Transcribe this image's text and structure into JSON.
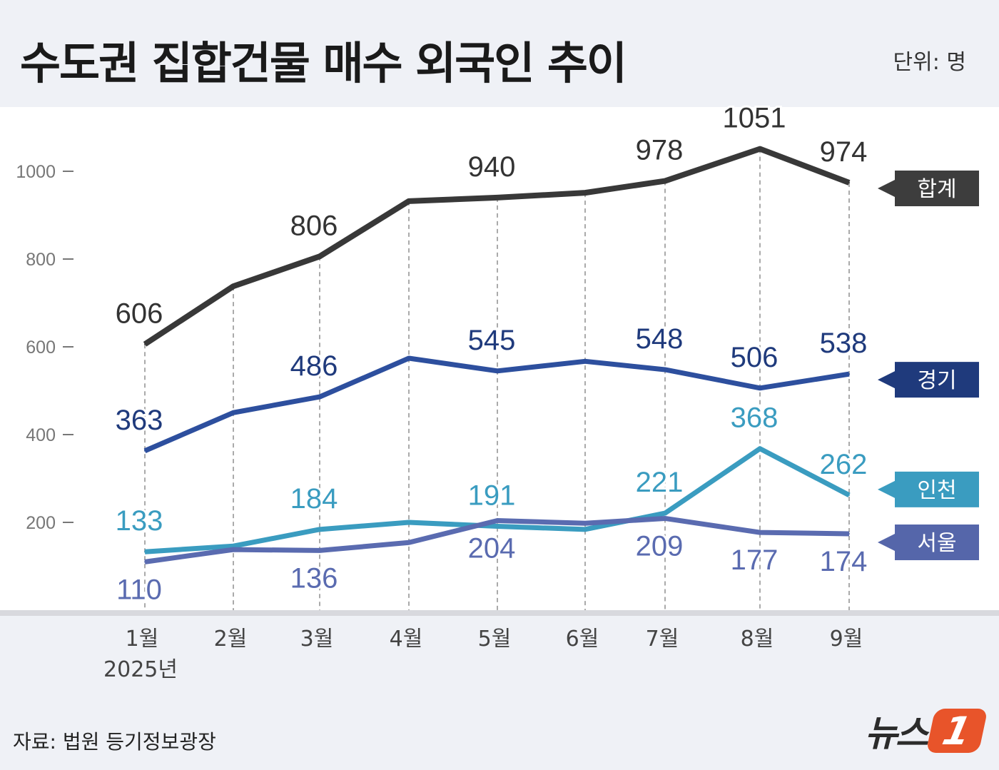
{
  "title": "수도권 집합건물 매수 외국인 추이",
  "unit": "단위: 명",
  "source": "자료: 법원 등기정보광장",
  "logo": {
    "text": "뉴스",
    "mark": "1"
  },
  "chart_data": {
    "type": "line",
    "title": "수도권 집합건물 매수 외국인 추이",
    "categories": [
      "1월",
      "2월",
      "3월",
      "4월",
      "5월",
      "6월",
      "7월",
      "8월",
      "9월"
    ],
    "year_label": "2025년",
    "ylim": [
      0,
      1100
    ],
    "yticks": [
      200,
      400,
      600,
      800,
      1000
    ],
    "ylabel": "단위: 명",
    "legend": "right",
    "series": [
      {
        "name": "합계",
        "color": "#383838",
        "box": "#3d3d3d",
        "values": [
          606,
          738,
          806,
          932,
          940,
          951,
          978,
          1051,
          974
        ],
        "labels": [
          "606",
          null,
          "806",
          null,
          "940",
          null,
          "978",
          "1051",
          "974"
        ],
        "label_pos": "above"
      },
      {
        "name": "경기",
        "color": "#2d4f9e",
        "box": "#1f3a7c",
        "values": [
          363,
          450,
          486,
          574,
          545,
          567,
          548,
          506,
          538
        ],
        "labels": [
          "363",
          null,
          "486",
          null,
          "545",
          null,
          "548",
          "506",
          "538"
        ],
        "label_pos": "above"
      },
      {
        "name": "인천",
        "color": "#3a9cc0",
        "box": "#3a9cc0",
        "values": [
          133,
          146,
          184,
          200,
          191,
          184,
          221,
          368,
          262
        ],
        "labels": [
          "133",
          null,
          "184",
          null,
          "191",
          null,
          "221",
          "368",
          "262"
        ],
        "label_pos": "above"
      },
      {
        "name": "서울",
        "color": "#5a6bb0",
        "box": "#5566aa",
        "values": [
          110,
          138,
          136,
          154,
          204,
          198,
          209,
          177,
          174
        ],
        "labels": [
          "110",
          null,
          "136",
          null,
          "204",
          null,
          "209",
          "177",
          "174"
        ],
        "label_pos": "below"
      }
    ]
  }
}
